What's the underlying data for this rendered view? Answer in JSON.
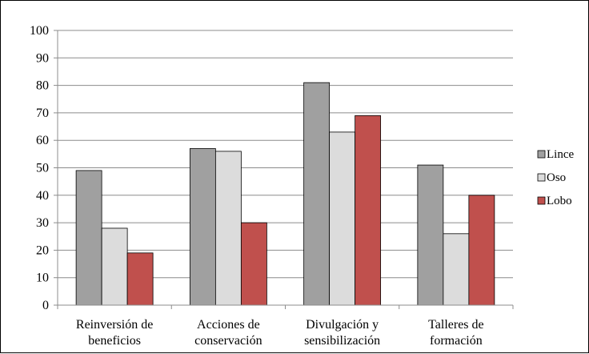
{
  "chart_data": {
    "type": "bar",
    "categories": [
      [
        "Reinversión de",
        "beneficios"
      ],
      [
        "Acciones de",
        "conservación"
      ],
      [
        "Divulgación y",
        "sensibilización"
      ],
      [
        "Talleres de",
        "formación"
      ]
    ],
    "series": [
      {
        "name": "Lince",
        "color": "#a0a0a0",
        "values": [
          49,
          57,
          81,
          51
        ]
      },
      {
        "name": "Oso",
        "color": "#dcdcdc",
        "values": [
          28,
          56,
          63,
          26
        ]
      },
      {
        "name": "Lobo",
        "color": "#c0504d",
        "values": [
          19,
          30,
          69,
          40
        ]
      }
    ],
    "ylim": [
      0,
      100
    ],
    "yticks": [
      "0",
      "10",
      "20",
      "30",
      "40",
      "50",
      "60",
      "70",
      "80",
      "90",
      "100"
    ],
    "grid": true,
    "legend_position": "right"
  }
}
